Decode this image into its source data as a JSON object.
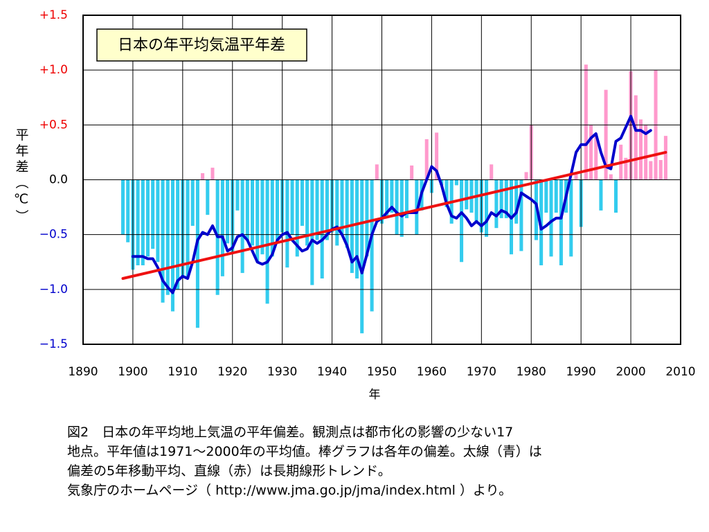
{
  "chart_data": {
    "type": "bar",
    "title": "日本の年平均気温平年差",
    "ylabel": "平年差（℃）",
    "xlabel": "年",
    "xlim": [
      1890,
      2010
    ],
    "xticks": [
      1890,
      1900,
      1910,
      1920,
      1930,
      1940,
      1950,
      1960,
      1970,
      1980,
      1990,
      2000,
      2010
    ],
    "ylim": [
      -1.5,
      1.5
    ],
    "yticks": [
      {
        "value": 1.5,
        "label": "+1.5"
      },
      {
        "value": 1.0,
        "label": "+1.0"
      },
      {
        "value": 0.5,
        "label": "+0.5"
      },
      {
        "value": 0,
        "label": "0.0"
      },
      {
        "value": -0.5,
        "label": "−0.5"
      },
      {
        "value": -1.0,
        "label": "−1.0"
      },
      {
        "value": -1.5,
        "label": "−1.5"
      }
    ],
    "grid": true,
    "series": [
      {
        "type": "bar",
        "color": "#ff99cc",
        "negative_color": "#33ccee",
        "x": [
          1898,
          1899,
          1900,
          1901,
          1902,
          1903,
          1904,
          1905,
          1906,
          1907,
          1908,
          1909,
          1910,
          1911,
          1912,
          1913,
          1914,
          1915,
          1916,
          1917,
          1918,
          1919,
          1920,
          1921,
          1922,
          1923,
          1924,
          1925,
          1926,
          1927,
          1928,
          1929,
          1930,
          1931,
          1932,
          1933,
          1934,
          1935,
          1936,
          1937,
          1938,
          1939,
          1940,
          1941,
          1942,
          1943,
          1944,
          1945,
          1946,
          1947,
          1948,
          1949,
          1950,
          1951,
          1952,
          1953,
          1954,
          1955,
          1956,
          1957,
          1958,
          1959,
          1960,
          1961,
          1962,
          1963,
          1964,
          1965,
          1966,
          1967,
          1968,
          1969,
          1970,
          1971,
          1972,
          1973,
          1974,
          1975,
          1976,
          1977,
          1978,
          1979,
          1980,
          1981,
          1982,
          1983,
          1984,
          1985,
          1986,
          1987,
          1988,
          1989,
          1990,
          1991,
          1992,
          1993,
          1994,
          1995,
          1996,
          1997,
          1998,
          1999,
          2000,
          2001,
          2002,
          2003,
          2004,
          2005,
          2006,
          2007
        ],
        "values": [
          -0.5,
          -0.57,
          -0.82,
          -0.78,
          -0.78,
          -0.7,
          -0.63,
          -0.75,
          -1.12,
          -1.05,
          -1.2,
          -1.0,
          -0.88,
          -0.9,
          -0.42,
          -1.35,
          0.06,
          -0.32,
          0.11,
          -1.05,
          -0.88,
          -0.58,
          -0.67,
          -0.28,
          -0.85,
          -0.55,
          -0.6,
          -0.75,
          -0.68,
          -1.13,
          -0.7,
          -0.55,
          -0.48,
          -0.8,
          -0.5,
          -0.7,
          -0.42,
          -0.6,
          -0.96,
          -0.55,
          -0.9,
          -0.55,
          -0.48,
          -0.6,
          -0.5,
          -0.62,
          -0.85,
          -0.9,
          -1.4,
          -0.7,
          -1.2,
          0.14,
          -0.4,
          -0.35,
          -0.3,
          -0.5,
          -0.52,
          -0.35,
          0.13,
          -0.5,
          -0.28,
          0.37,
          -0.12,
          0.43,
          -0.05,
          -0.25,
          -0.4,
          -0.05,
          -0.75,
          -0.27,
          -0.3,
          -0.4,
          -0.48,
          -0.52,
          0.14,
          -0.44,
          -0.35,
          -0.35,
          -0.68,
          -0.4,
          -0.65,
          0.07,
          0.5,
          -0.55,
          -0.78,
          -0.3,
          -0.7,
          -0.3,
          -0.78,
          -0.3,
          -0.7,
          0.05,
          -0.43,
          1.05,
          0.5,
          0.42,
          -0.28,
          0.82,
          0.05,
          -0.3,
          0.32,
          0.2,
          0.99,
          0.77,
          0.55,
          0.5,
          0.17,
          1.0,
          0.18,
          0.4
        ]
      },
      {
        "type": "line",
        "color": "#0000cc",
        "width": 4,
        "x": [
          1900,
          1901,
          1902,
          1903,
          1904,
          1905,
          1906,
          1907,
          1908,
          1909,
          1910,
          1911,
          1912,
          1913,
          1914,
          1915,
          1916,
          1917,
          1918,
          1919,
          1920,
          1921,
          1922,
          1923,
          1924,
          1925,
          1926,
          1927,
          1928,
          1929,
          1930,
          1931,
          1932,
          1933,
          1934,
          1935,
          1936,
          1937,
          1938,
          1939,
          1940,
          1941,
          1942,
          1943,
          1944,
          1945,
          1946,
          1947,
          1948,
          1949,
          1950,
          1951,
          1952,
          1953,
          1954,
          1955,
          1956,
          1957,
          1958,
          1959,
          1960,
          1961,
          1962,
          1963,
          1964,
          1965,
          1966,
          1967,
          1968,
          1969,
          1970,
          1971,
          1972,
          1973,
          1974,
          1975,
          1976,
          1977,
          1978,
          1979,
          1980,
          1981,
          1982,
          1983,
          1984,
          1985,
          1986,
          1987,
          1988,
          1989,
          1990,
          1991,
          1992,
          1993,
          1994,
          1995,
          1996,
          1997,
          1998,
          1999,
          2000,
          2001,
          2002,
          2003,
          2004
        ],
        "values": [
          -0.7,
          -0.7,
          -0.7,
          -0.72,
          -0.72,
          -0.8,
          -0.92,
          -0.98,
          -1.03,
          -0.92,
          -0.88,
          -0.9,
          -0.75,
          -0.55,
          -0.48,
          -0.5,
          -0.42,
          -0.52,
          -0.52,
          -0.65,
          -0.62,
          -0.52,
          -0.5,
          -0.55,
          -0.65,
          -0.75,
          -0.77,
          -0.75,
          -0.68,
          -0.55,
          -0.5,
          -0.48,
          -0.55,
          -0.6,
          -0.65,
          -0.63,
          -0.55,
          -0.58,
          -0.55,
          -0.5,
          -0.45,
          -0.43,
          -0.5,
          -0.6,
          -0.75,
          -0.7,
          -0.85,
          -0.68,
          -0.5,
          -0.38,
          -0.35,
          -0.3,
          -0.25,
          -0.3,
          -0.33,
          -0.3,
          -0.3,
          -0.3,
          -0.12,
          0.0,
          0.12,
          0.08,
          -0.05,
          -0.22,
          -0.33,
          -0.35,
          -0.3,
          -0.35,
          -0.42,
          -0.38,
          -0.42,
          -0.38,
          -0.3,
          -0.33,
          -0.28,
          -0.3,
          -0.35,
          -0.3,
          -0.12,
          -0.15,
          -0.18,
          -0.22,
          -0.45,
          -0.42,
          -0.38,
          -0.35,
          -0.35,
          -0.15,
          0.05,
          0.25,
          0.32,
          0.32,
          0.38,
          0.42,
          0.25,
          0.12,
          0.1,
          0.35,
          0.38,
          0.48,
          0.58,
          0.45,
          0.45,
          0.42,
          0.45
        ]
      },
      {
        "type": "line",
        "color": "#ee1111",
        "width": 4,
        "x": [
          1898,
          2007
        ],
        "values": [
          -0.9,
          0.25
        ]
      }
    ],
    "caption": [
      "図2　日本の年平均地上気温の平年偏差。観測点は都市化の影響の少ない17",
      "地点。平年値は1971～2000年の平均値。棒グラフは各年の偏差。太線（青）は",
      "偏差の5年移動平均、直線（赤）は長期線形トレンド。",
      "気象庁のホームページ（ http://www.jma.go.jp/jma/index.html ）より。"
    ]
  }
}
